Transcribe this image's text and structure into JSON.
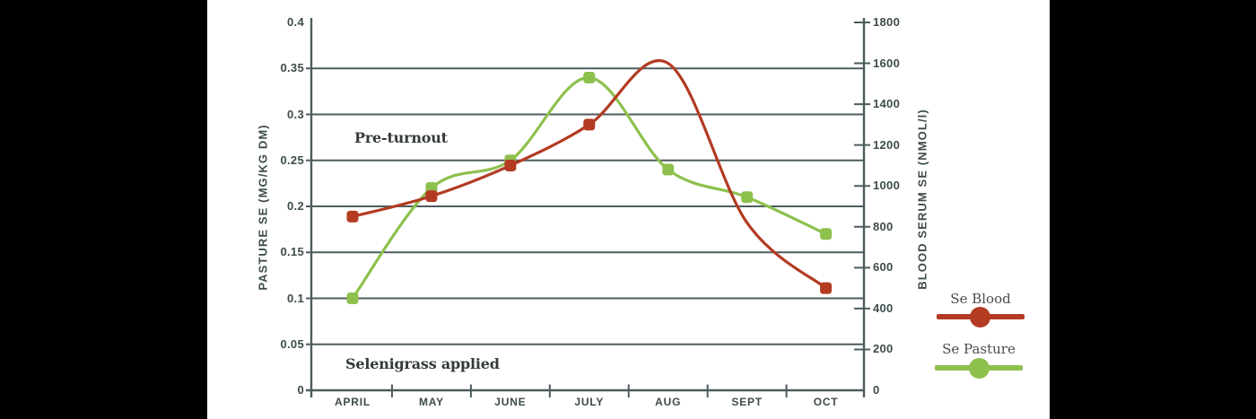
{
  "colors": {
    "background": "#ffffff",
    "side_bars": "#000000",
    "axis": "#4d5c5e",
    "tick_text": "#3d4b4b",
    "annotation_text": "#343a3a",
    "legend_text": "#4b4b49",
    "se_blood": "#b23b22",
    "se_pasture": "#8ec04e"
  },
  "chart_data": {
    "type": "line",
    "title": "",
    "categories": [
      "APRIL",
      "MAY",
      "JUNE",
      "JULY",
      "AUG",
      "SEPT",
      "OCT"
    ],
    "left_axis": {
      "title": "PASTURE SE (MG/KG DM)",
      "min": 0,
      "max": 0.4,
      "tick_step": 0.05,
      "ticks": [
        0.4,
        0.35,
        0.3,
        0.25,
        0.2,
        0.15,
        0.1,
        0.05,
        0
      ],
      "tick_labels": [
        "0.4",
        "0.35",
        "0.3",
        "0.25",
        "0.2",
        "0.15",
        "0.1",
        "0.05",
        "0"
      ]
    },
    "right_axis": {
      "title": "BLOOD SERUM SE (NMOL/l)",
      "min": 0,
      "max": 1800,
      "tick_step": 200,
      "ticks": [
        1800,
        1600,
        1400,
        1200,
        1000,
        800,
        600,
        400,
        200,
        0
      ],
      "tick_labels": [
        "1800",
        "1600",
        "1400",
        "1200",
        "1000",
        "800",
        "600",
        "400",
        "200",
        "0"
      ]
    },
    "series": [
      {
        "name": "Se Blood",
        "axis": "right",
        "color": "#b23b22",
        "values": [
          850,
          950,
          1100,
          1300,
          1600,
          820,
          500
        ],
        "marker_shown": [
          true,
          true,
          true,
          true,
          false,
          false,
          true
        ]
      },
      {
        "name": "Se Pasture",
        "axis": "left",
        "color": "#8ec04e",
        "values": [
          0.1,
          0.22,
          0.25,
          0.34,
          0.24,
          0.21,
          0.17
        ],
        "marker_shown": [
          true,
          true,
          true,
          true,
          true,
          true,
          true
        ]
      }
    ],
    "annotations": [
      {
        "id": "pre-turnout",
        "text": "Pre-turnout"
      },
      {
        "id": "selenigrass-applied",
        "text": "Selenigrass applied"
      }
    ],
    "grid": "horizontal",
    "legend_position": "right"
  }
}
